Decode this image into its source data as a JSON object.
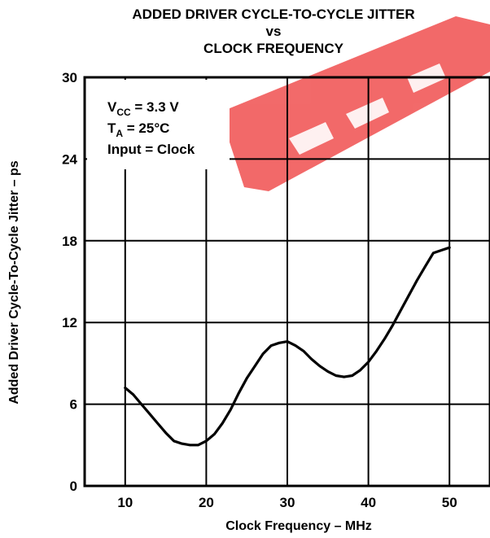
{
  "chart_data": {
    "type": "line",
    "title_lines": [
      "ADDED DRIVER CYCLE-TO-CYCLE JITTER",
      "vs",
      "CLOCK FREQUENCY"
    ],
    "xlabel": "Clock Frequency – MHz",
    "ylabel": "Added Driver Cycle-To-Cycle Jitter – ps",
    "xlim": [
      5,
      55
    ],
    "ylim": [
      0,
      30
    ],
    "xticks": [
      10,
      20,
      30,
      40,
      50
    ],
    "yticks": [
      0,
      6,
      12,
      18,
      24,
      30
    ],
    "grid": true,
    "annotations": {
      "vcc": {
        "main": "V",
        "sub": "CC",
        "rest": " = 3.3 V"
      },
      "ta": {
        "main": "T",
        "sub": "A",
        "rest": " = 25°C"
      },
      "input": "Input = Clock"
    },
    "series": [
      {
        "x": [
          10,
          11,
          12,
          13,
          14,
          15,
          16,
          17,
          18,
          19,
          20,
          21,
          22,
          23,
          24,
          25,
          26,
          27,
          28,
          29,
          30,
          31,
          32,
          33,
          34,
          35,
          36,
          37,
          38,
          39,
          40,
          41,
          42,
          43,
          44,
          45,
          46,
          47,
          48,
          49,
          50
        ],
        "y": [
          7.2,
          6.7,
          6.0,
          5.3,
          4.6,
          3.9,
          3.3,
          3.1,
          3.0,
          3.0,
          3.3,
          3.8,
          4.6,
          5.6,
          6.8,
          7.9,
          8.8,
          9.7,
          10.3,
          10.5,
          10.6,
          10.3,
          9.9,
          9.3,
          8.8,
          8.4,
          8.1,
          8.0,
          8.1,
          8.5,
          9.1,
          9.9,
          10.8,
          11.8,
          12.9,
          14.0,
          15.1,
          16.1,
          17.1,
          17.3,
          17.5
        ]
      }
    ]
  },
  "watermark": {
    "color": "#f04040"
  }
}
